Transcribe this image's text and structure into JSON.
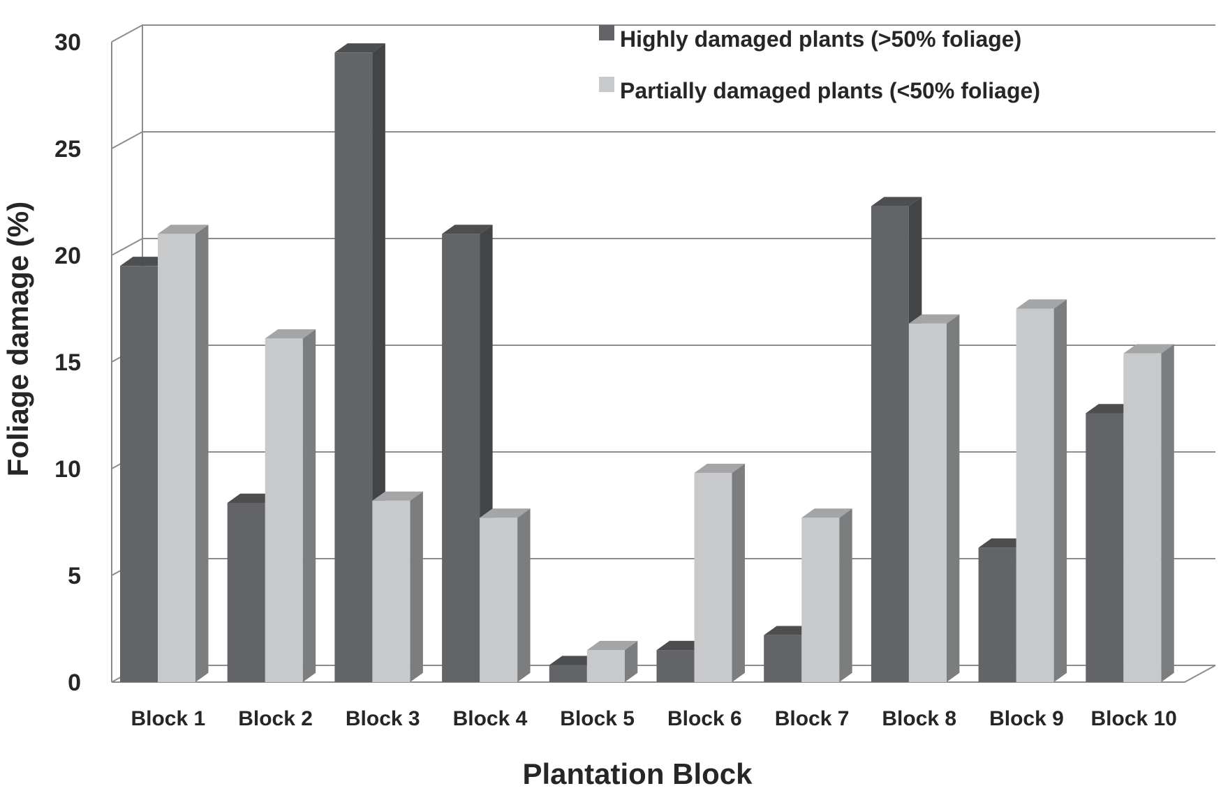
{
  "chart_data": {
    "type": "bar",
    "title": "",
    "xlabel": "Plantation Block",
    "ylabel": "Foliage damage (%)",
    "ylim": [
      0,
      30
    ],
    "yticks": [
      "0",
      "5",
      "10",
      "15",
      "20",
      "25",
      "30"
    ],
    "grid": true,
    "legend_position": "top-right",
    "categories": [
      "Block 1",
      "Block 2",
      "Block 3",
      "Block 4",
      "Block 5",
      "Block 6",
      "Block 7",
      "Block 8",
      "Block 9",
      "Block 10"
    ],
    "series": [
      {
        "name": "Highly damaged plants (>50% foliage)",
        "color": "#636467",
        "values": [
          19.5,
          8.4,
          29.5,
          21.0,
          0.8,
          1.5,
          2.2,
          22.3,
          6.3,
          12.6
        ]
      },
      {
        "name": "Partially damaged plants (<50% foliage)",
        "color": "#c8c9cb",
        "values": [
          21.0,
          16.1,
          8.5,
          7.7,
          1.5,
          9.8,
          7.7,
          16.8,
          17.5,
          15.4
        ]
      }
    ]
  }
}
